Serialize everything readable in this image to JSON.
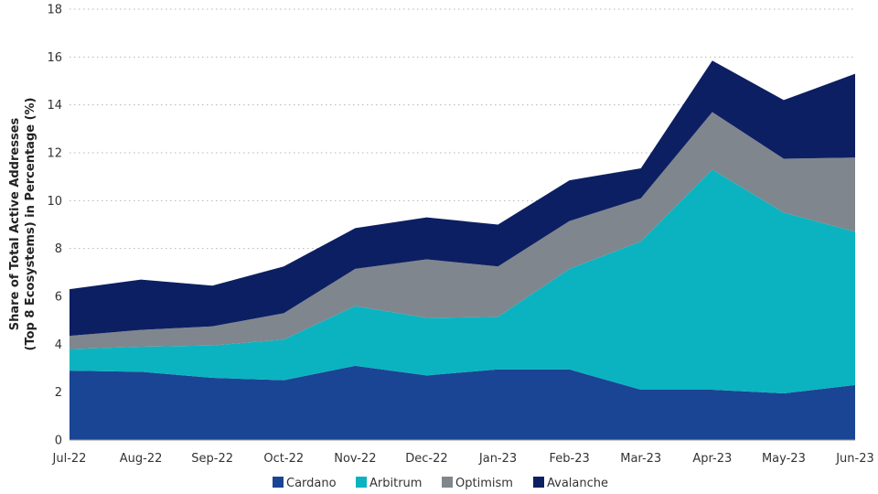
{
  "chart_data": {
    "type": "area",
    "stacked": true,
    "title": "",
    "xlabel": "",
    "ylabel_line1": "Share of Total Active Addresses",
    "ylabel_line2": "(Top 8 Ecosystems) in Percentage (%)",
    "ylim": [
      0,
      18
    ],
    "yticks": [
      0,
      2,
      4,
      6,
      8,
      10,
      12,
      14,
      16,
      18
    ],
    "grid": "horizontal-dotted",
    "legend_position": "bottom-center",
    "categories": [
      "Jul-22",
      "Aug-22",
      "Sep-22",
      "Oct-22",
      "Nov-22",
      "Dec-22",
      "Jan-23",
      "Feb-23",
      "Mar-23",
      "Apr-23",
      "May-23",
      "Jun-23"
    ],
    "series": [
      {
        "name": "Cardano",
        "color": "#1a4594",
        "values": [
          2.9,
          2.85,
          2.6,
          2.5,
          3.1,
          2.7,
          2.95,
          2.95,
          2.1,
          2.1,
          1.95,
          2.3
        ]
      },
      {
        "name": "Arbitrum",
        "color": "#0bb3c0",
        "values": [
          0.9,
          1.05,
          1.35,
          1.7,
          2.5,
          2.4,
          2.2,
          4.2,
          6.2,
          9.2,
          7.55,
          6.4
        ]
      },
      {
        "name": "Optimism",
        "color": "#7f868e",
        "values": [
          0.55,
          0.7,
          0.8,
          1.1,
          1.55,
          2.45,
          2.1,
          2.0,
          1.8,
          2.4,
          2.25,
          3.1
        ]
      },
      {
        "name": "Avalanche",
        "color": "#0d1f63",
        "values": [
          1.95,
          2.1,
          1.7,
          1.95,
          1.7,
          1.75,
          1.75,
          1.7,
          1.25,
          2.15,
          2.45,
          3.5
        ]
      }
    ]
  }
}
